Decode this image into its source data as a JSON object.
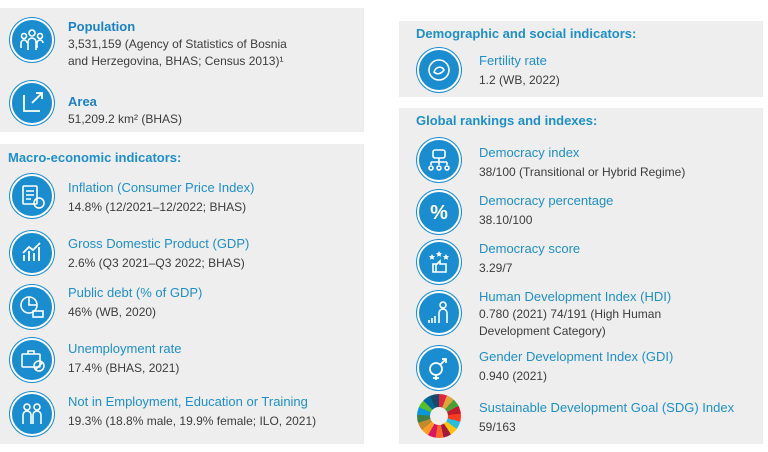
{
  "left": {
    "population": {
      "label": "Population",
      "value_line1": "3,531,159 (Agency of Statistics of Bosnia",
      "value_line2": "and Herzegovina, BHAS; Census 2013)¹"
    },
    "area": {
      "label": "Area",
      "value": "51,209.2 km² (BHAS)"
    },
    "macro_title": "Macro-economic indicators:",
    "macro_items": [
      {
        "label": "Inflation (Consumer Price Index)",
        "value": "14.8% (12/2021–12/2022; BHAS)",
        "icon": "price-tag-icon"
      },
      {
        "label": "Gross Domestic Product (GDP)",
        "value": "2.6% (Q3 2021–Q3 2022; BHAS)",
        "icon": "growth-chart-icon"
      },
      {
        "label": "Public debt (% of GDP)",
        "value": "46% (WB, 2020)",
        "icon": "debt-pie-icon"
      },
      {
        "label": "Unemployment rate",
        "value": "17.4% (BHAS, 2021)",
        "icon": "briefcase-icon"
      },
      {
        "label": "Not in Employment, Education or Training",
        "value": "19.3% (18.8% male, 19.9% female; ILO, 2021)",
        "icon": "people-icon"
      }
    ]
  },
  "right": {
    "demo_title": "Demographic and social indicators:",
    "fertility": {
      "label": "Fertility rate",
      "value": "1.2 (WB, 2022)"
    },
    "rank_title": "Global rankings and indexes:",
    "rank_items": [
      {
        "label": "Democracy index",
        "value": "38/100 (Transitional or Hybrid Regime)",
        "icon": "hierarchy-icon"
      },
      {
        "label": "Democracy percentage",
        "value": "38.10/100",
        "icon": "percent-icon"
      },
      {
        "label": "Democracy score",
        "value": "3.29/7",
        "icon": "thumbs-up-stars-icon"
      },
      {
        "label": "Human Development Index (HDI)",
        "value_line1": "0.780 (2021) 74/191 (High Human",
        "value_line2": "Development Category)",
        "icon": "human-growth-icon"
      },
      {
        "label": "Gender Development Index  (GDI)",
        "value": "0.940 (2021)",
        "icon": "gender-icon"
      },
      {
        "label": "Sustainable Development Goal (SDG) Index",
        "value": "59/163",
        "icon": "sdg-wheel-icon"
      }
    ]
  },
  "colors": {
    "accent": "#1a8cd0",
    "heading": "#1f8fc7",
    "panel": "#eeeeee"
  }
}
